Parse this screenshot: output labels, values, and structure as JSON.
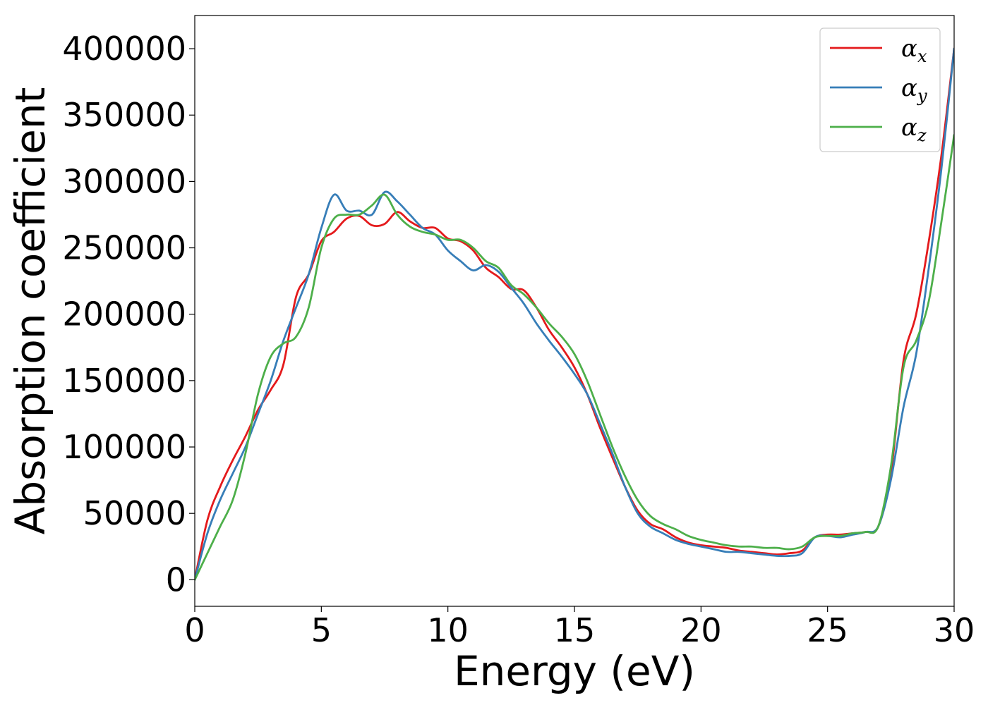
{
  "chart_data": {
    "type": "line",
    "title": "",
    "xlabel": "Energy (eV)",
    "ylabel": "Absorption coefficient",
    "xlim": [
      0,
      30
    ],
    "ylim": [
      -20000,
      425000
    ],
    "x_ticks": [
      0,
      5,
      10,
      15,
      20,
      25,
      30
    ],
    "y_ticks": [
      0,
      50000,
      100000,
      150000,
      200000,
      250000,
      300000,
      350000,
      400000
    ],
    "grid": false,
    "legend_position": "top-right",
    "series": [
      {
        "name": "α_x",
        "label_main": "α",
        "label_sub": "x",
        "color": "#e41a1c",
        "x": [
          0,
          0.5,
          1,
          1.5,
          2,
          2.5,
          3,
          3.5,
          4,
          4.5,
          5,
          5.5,
          6,
          6.5,
          7,
          7.5,
          8,
          8.5,
          9,
          9.5,
          10,
          10.5,
          11,
          11.5,
          12,
          12.5,
          13,
          13.5,
          14,
          14.5,
          15,
          15.5,
          16,
          16.5,
          17,
          17.5,
          18,
          18.5,
          19,
          19.5,
          20,
          20.5,
          21,
          21.5,
          22,
          22.5,
          23,
          23.5,
          24,
          24.5,
          25,
          25.5,
          26,
          26.5,
          27,
          27.5,
          28,
          28.5,
          29,
          29.5,
          30
        ],
        "values": [
          0,
          45000,
          70000,
          90000,
          108000,
          128000,
          143000,
          162000,
          213000,
          230000,
          255000,
          262000,
          272000,
          274000,
          267000,
          268000,
          277000,
          270000,
          265000,
          265000,
          257000,
          255000,
          248000,
          235000,
          228000,
          219000,
          218000,
          205000,
          188000,
          175000,
          160000,
          140000,
          115000,
          92000,
          70000,
          52000,
          42000,
          38000,
          32000,
          28000,
          26000,
          25000,
          24000,
          22000,
          21000,
          20000,
          19000,
          20000,
          22000,
          32000,
          34000,
          34000,
          35000,
          36000,
          40000,
          80000,
          165000,
          200000,
          255000,
          320000,
          400000
        ]
      },
      {
        "name": "α_y",
        "label_main": "α",
        "label_sub": "y",
        "color": "#377eb8",
        "x": [
          0,
          0.5,
          1,
          1.5,
          2,
          2.5,
          3,
          3.5,
          4,
          4.5,
          5,
          5.5,
          6,
          6.5,
          7,
          7.5,
          8,
          8.5,
          9,
          9.5,
          10,
          10.5,
          11,
          11.5,
          12,
          12.5,
          13,
          13.5,
          14,
          14.5,
          15,
          15.5,
          16,
          16.5,
          17,
          17.5,
          18,
          18.5,
          19,
          19.5,
          20,
          20.5,
          21,
          21.5,
          22,
          22.5,
          23,
          23.5,
          24,
          24.5,
          25,
          25.5,
          26,
          26.5,
          27,
          27.5,
          28,
          28.5,
          29,
          29.5,
          30
        ],
        "values": [
          0,
          35000,
          60000,
          80000,
          100000,
          125000,
          150000,
          180000,
          205000,
          230000,
          265000,
          290000,
          278000,
          278000,
          275000,
          292000,
          285000,
          275000,
          265000,
          260000,
          248000,
          240000,
          233000,
          237000,
          232000,
          220000,
          208000,
          193000,
          180000,
          168000,
          155000,
          140000,
          118000,
          95000,
          70000,
          50000,
          40000,
          35000,
          30000,
          27000,
          25000,
          23000,
          21000,
          21000,
          20000,
          19000,
          18000,
          18000,
          20000,
          32000,
          33000,
          32000,
          34000,
          36000,
          40000,
          75000,
          130000,
          170000,
          235000,
          310000,
          400000
        ]
      },
      {
        "name": "α_z",
        "label_main": "α",
        "label_sub": "z",
        "color": "#4daf4a",
        "x": [
          0,
          0.5,
          1,
          1.5,
          2,
          2.5,
          3,
          3.5,
          4,
          4.5,
          5,
          5.5,
          6,
          6.5,
          7,
          7.5,
          8,
          8.5,
          9,
          9.5,
          10,
          10.5,
          11,
          11.5,
          12,
          12.5,
          13,
          13.5,
          14,
          14.5,
          15,
          15.5,
          16,
          16.5,
          17,
          17.5,
          18,
          18.5,
          19,
          19.5,
          20,
          20.5,
          21,
          21.5,
          22,
          22.5,
          23,
          23.5,
          24,
          24.5,
          25,
          25.5,
          26,
          26.5,
          27,
          27.5,
          28,
          28.5,
          29,
          29.5,
          30
        ],
        "values": [
          0,
          20000,
          40000,
          60000,
          95000,
          140000,
          168000,
          178000,
          183000,
          205000,
          250000,
          272000,
          275000,
          275000,
          282000,
          290000,
          275000,
          266000,
          262000,
          260000,
          256000,
          256000,
          250000,
          240000,
          235000,
          222000,
          215000,
          205000,
          193000,
          183000,
          170000,
          150000,
          125000,
          100000,
          78000,
          60000,
          48000,
          42000,
          38000,
          33000,
          30000,
          28000,
          26000,
          25000,
          25000,
          24000,
          24000,
          23000,
          25000,
          32000,
          33000,
          33000,
          35000,
          36000,
          40000,
          85000,
          160000,
          180000,
          210000,
          270000,
          335000
        ]
      }
    ]
  }
}
